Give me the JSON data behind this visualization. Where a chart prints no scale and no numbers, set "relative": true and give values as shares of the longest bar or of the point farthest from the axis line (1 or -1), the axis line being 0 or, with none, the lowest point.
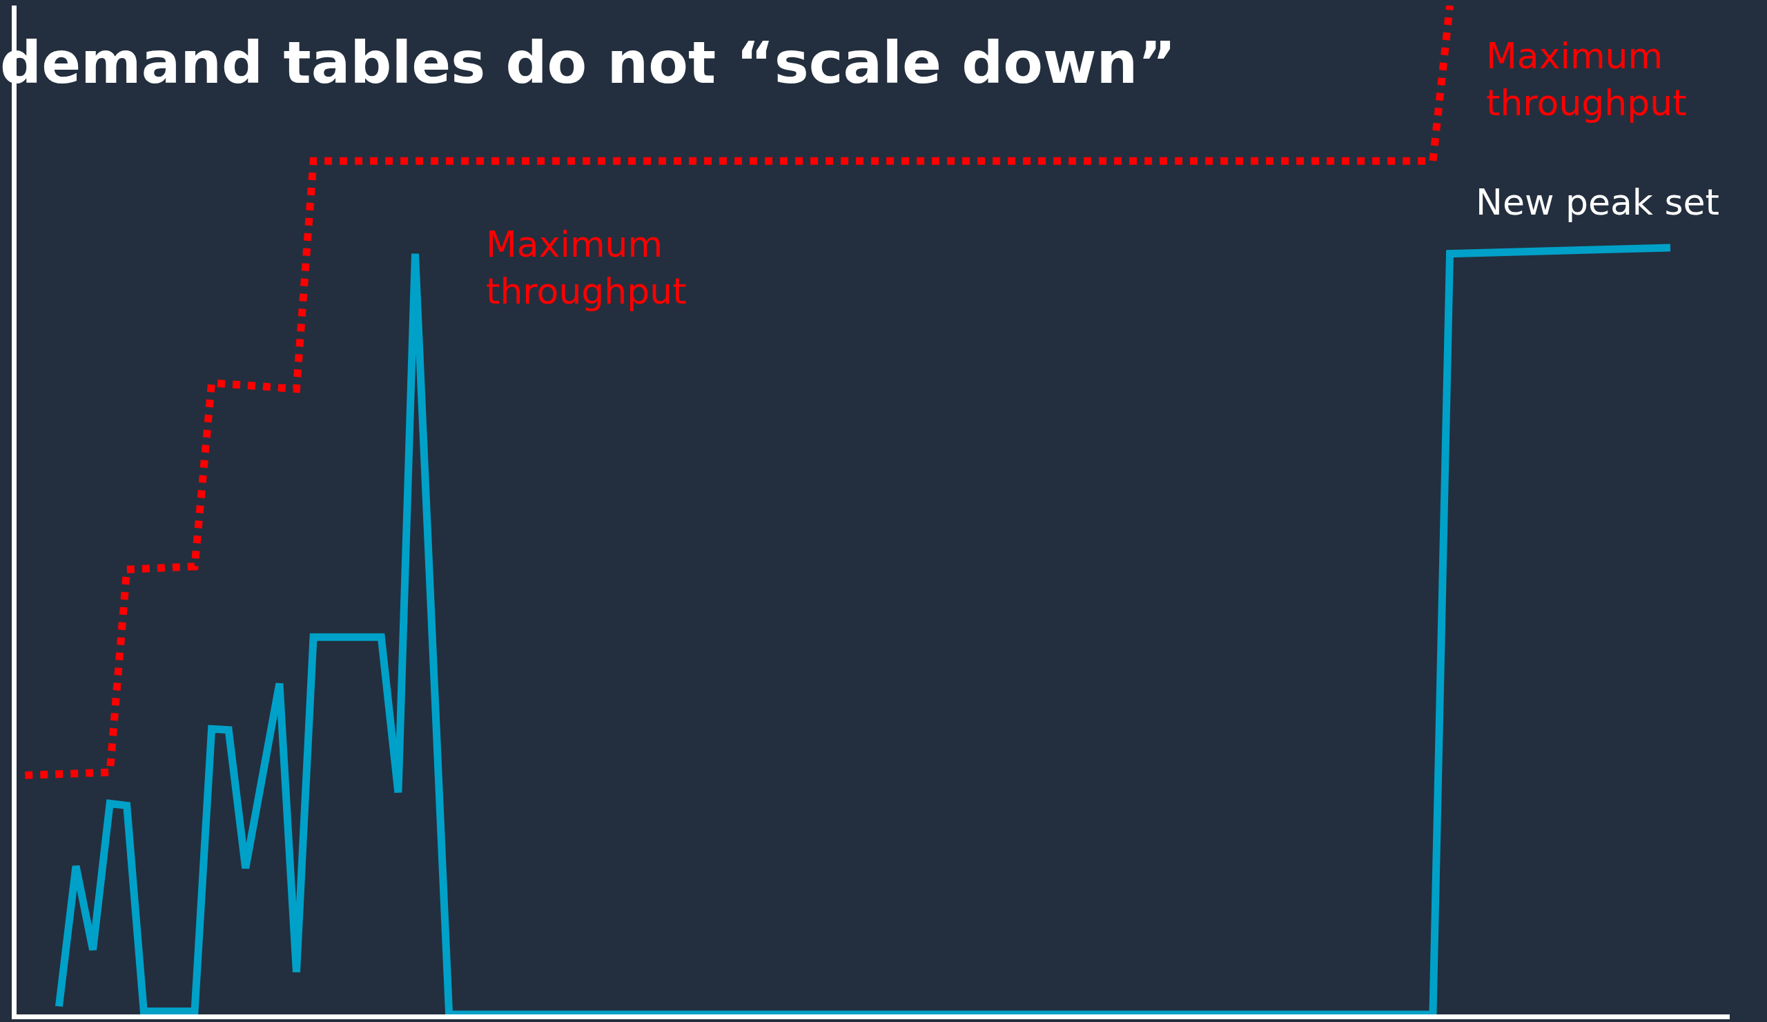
{
  "chart_data": {
    "type": "line",
    "title": "demand tables do not “scale down”",
    "relative": true,
    "marker": "none",
    "categories": [
      null,
      null,
      null,
      null,
      null,
      null,
      null,
      null,
      null,
      null,
      null,
      null,
      null,
      null,
      null,
      null,
      null,
      null,
      null,
      null,
      null,
      null,
      null,
      null,
      null,
      null,
      null,
      null,
      null,
      null,
      null,
      null,
      null,
      null,
      null,
      null,
      null,
      null,
      null,
      null,
      null,
      null,
      null,
      null,
      null,
      null,
      null,
      null,
      null,
      null,
      null,
      null,
      null,
      null,
      null,
      null,
      null,
      null,
      null,
      null,
      null,
      null,
      null,
      null,
      null,
      null,
      null,
      null,
      null,
      null,
      null,
      null,
      null,
      null,
      null,
      null,
      null,
      null,
      null,
      null,
      null,
      null,
      null,
      null,
      null,
      null,
      null,
      null,
      null,
      null,
      null,
      null,
      null,
      null,
      null,
      null,
      null,
      null,
      null,
      null
    ],
    "series": [
      {
        "color": "#ff0000",
        "line_style": "dotted",
        "values": [
          0.237,
          null,
          null,
          null,
          null,
          0.24,
          0.441,
          null,
          null,
          null,
          0.444,
          0.626,
          null,
          null,
          null,
          null,
          0.62,
          0.846,
          null,
          null,
          null,
          null,
          null,
          null,
          null,
          null,
          null,
          null,
          null,
          null,
          null,
          null,
          null,
          null,
          null,
          null,
          null,
          null,
          null,
          null,
          null,
          null,
          null,
          null,
          null,
          null,
          null,
          null,
          null,
          null,
          null,
          null,
          null,
          null,
          null,
          null,
          null,
          null,
          null,
          null,
          null,
          null,
          null,
          null,
          null,
          null,
          null,
          null,
          null,
          null,
          null,
          null,
          null,
          null,
          null,
          null,
          null,
          null,
          null,
          null,
          null,
          null,
          null,
          0.846,
          1.0,
          null,
          null,
          null,
          null,
          null,
          null,
          null,
          null,
          null,
          null,
          null,
          null,
          null,
          null,
          null
        ]
      },
      {
        "color": "#00a1c9",
        "line_style": "solid",
        "values": [
          null,
          null,
          0.008,
          0.147,
          0.064,
          0.209,
          0.207,
          0.003,
          null,
          null,
          0.003,
          0.283,
          0.282,
          0.145,
          null,
          0.328,
          0.042,
          0.374,
          null,
          null,
          null,
          0.374,
          0.22,
          0.754,
          null,
          0,
          null,
          null,
          null,
          null,
          null,
          null,
          null,
          null,
          null,
          null,
          null,
          null,
          null,
          null,
          null,
          null,
          null,
          null,
          null,
          null,
          null,
          null,
          null,
          null,
          null,
          null,
          null,
          null,
          null,
          null,
          null,
          null,
          null,
          null,
          null,
          null,
          null,
          null,
          null,
          null,
          null,
          null,
          null,
          null,
          null,
          null,
          null,
          null,
          null,
          null,
          null,
          null,
          null,
          null,
          null,
          null,
          null,
          0,
          0.754,
          null,
          null,
          null,
          null,
          null,
          null,
          null,
          null,
          null,
          null,
          null,
          null,
          0.76,
          null,
          null
        ]
      }
    ],
    "annotations": [
      "Maximum throughput",
      "Maximum throughput",
      "New peak set"
    ]
  }
}
